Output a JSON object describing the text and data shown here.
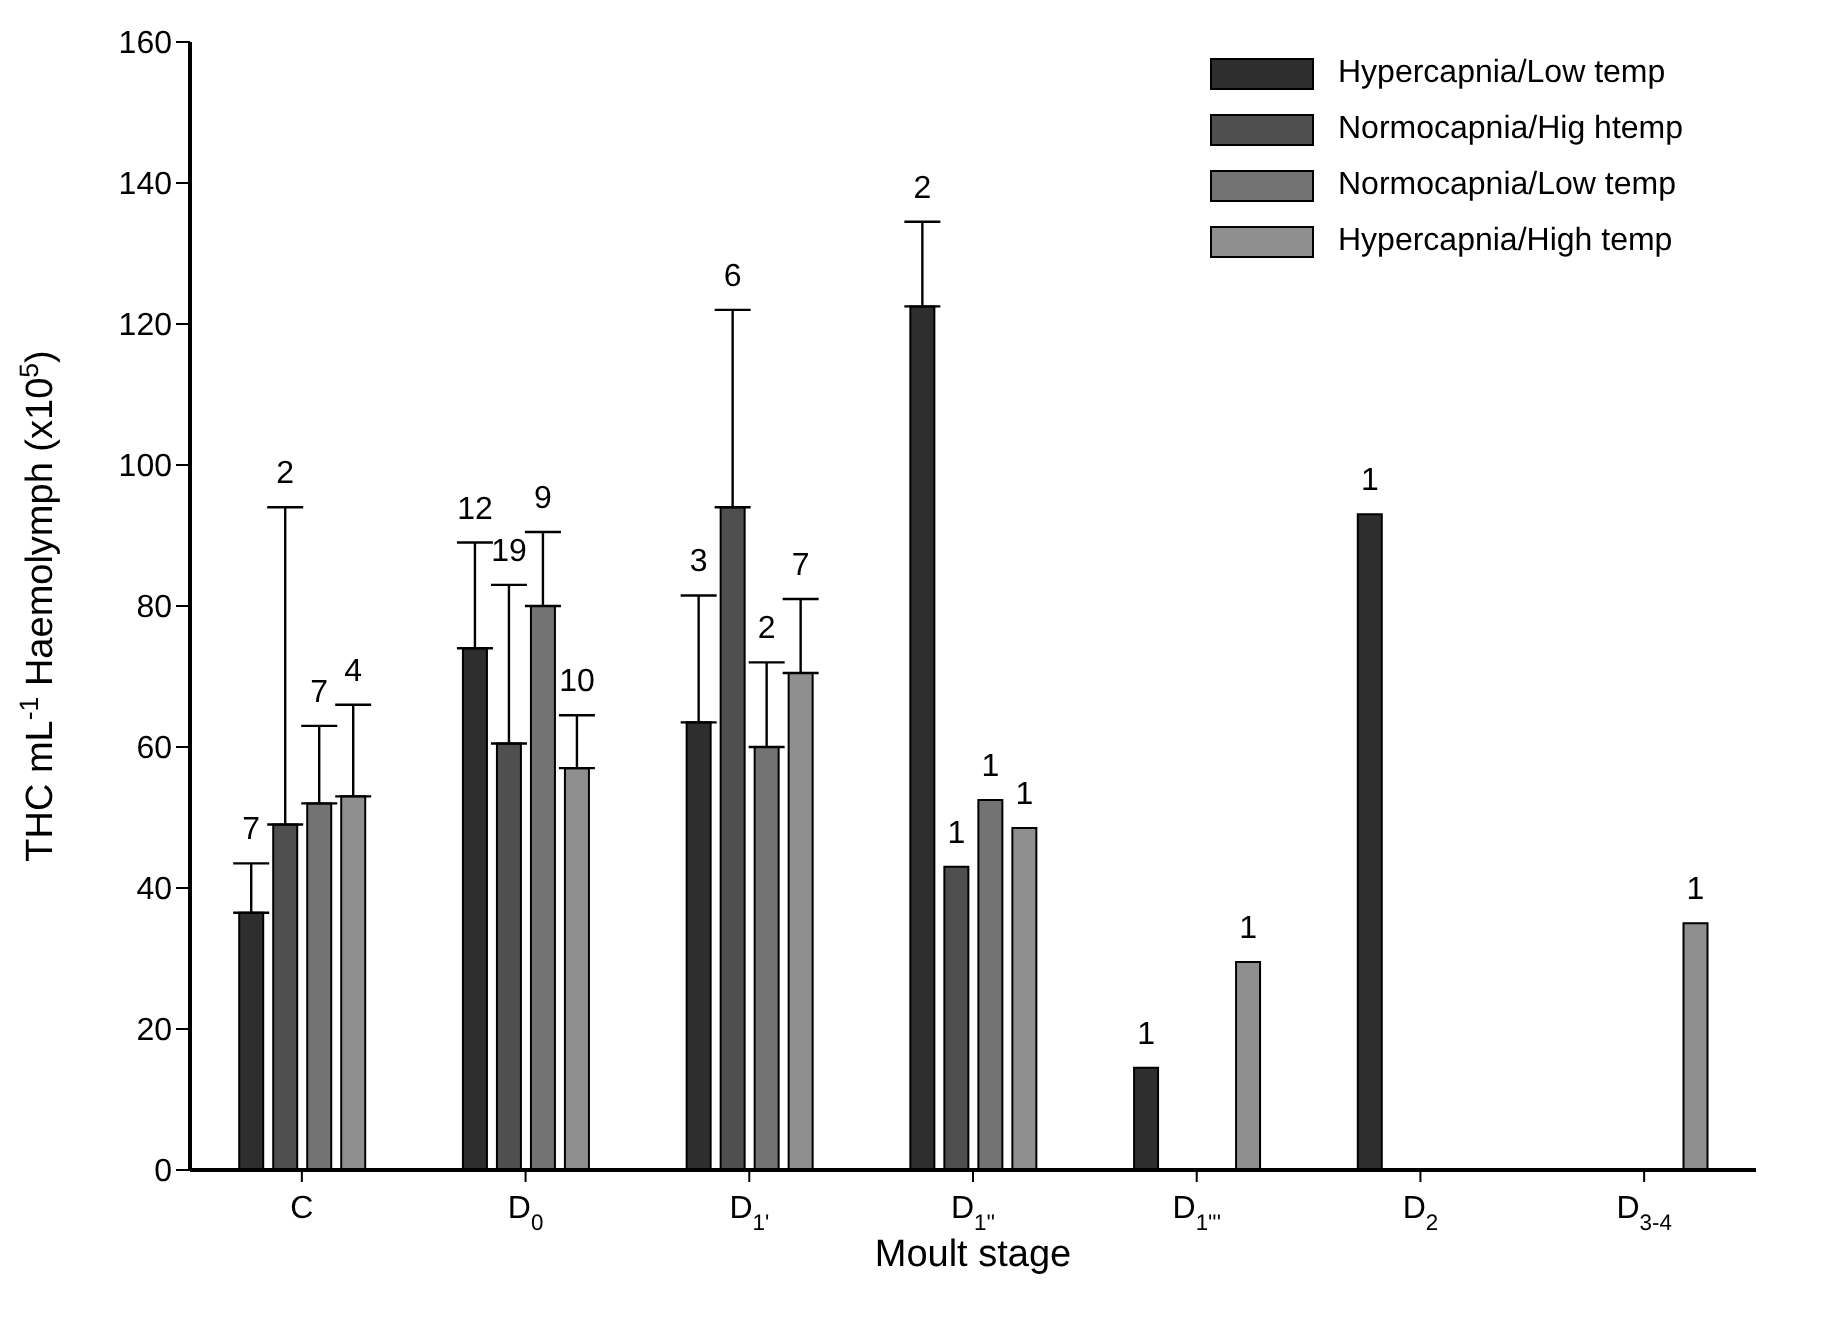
{
  "chart_data": {
    "type": "bar",
    "xlabel": "Moult stage",
    "ylabel": "THC mL$^{-1}$ Haemolymph (x10$^{5}$)",
    "categories": [
      "C",
      "D$_{0}$",
      "D$_{1'}$",
      "D$_{1''}$",
      "D$_{1'''}$",
      "D$_{2}$",
      "D$_{3-4}$"
    ],
    "series": [
      {
        "name": "Hypercapnia/Low temp",
        "color": "#2e2e2e",
        "values": [
          36.5,
          74,
          63.5,
          122.5,
          14.5,
          93,
          null
        ],
        "errors": [
          [
            36.5,
            43.5
          ],
          [
            74,
            89
          ],
          [
            63.5,
            81.5
          ],
          [
            122.5,
            134.5
          ],
          null,
          null,
          null
        ]
      },
      {
        "name": "Normocapnia/Hig htemp",
        "color": "#4f4f4f",
        "values": [
          49,
          60.5,
          94,
          43,
          null,
          null,
          null
        ],
        "errors": [
          [
            49,
            94
          ],
          [
            60.5,
            83
          ],
          [
            94,
            122
          ],
          null,
          null,
          null,
          null
        ]
      },
      {
        "name": "Normocapnia/Low temp",
        "color": "#737373",
        "values": [
          52,
          80,
          60,
          52.5,
          null,
          null,
          null
        ],
        "errors": [
          [
            52,
            63
          ],
          [
            80,
            90.5
          ],
          [
            60,
            72
          ],
          null,
          null,
          null,
          null
        ]
      },
      {
        "name": "Hypercapnia/High temp",
        "color": "#8f8f8f",
        "values": [
          53,
          57,
          70.5,
          48.5,
          29.5,
          null,
          35
        ],
        "errors": [
          [
            53,
            66
          ],
          [
            57,
            64.5
          ],
          [
            70.5,
            81
          ],
          null,
          null,
          null,
          null
        ]
      }
    ],
    "annotations": [
      "7",
      "2",
      "7",
      "4",
      "12",
      "19",
      "9",
      "10",
      "3",
      "6",
      "2",
      "7",
      "2",
      "1",
      "1",
      "1",
      "1",
      "1",
      "1",
      "1"
    ],
    "ylim": [
      0,
      160
    ],
    "yticks": [
      0,
      20,
      40,
      60,
      80,
      100,
      120,
      140,
      160
    ],
    "grid": false,
    "legend": "top right"
  }
}
